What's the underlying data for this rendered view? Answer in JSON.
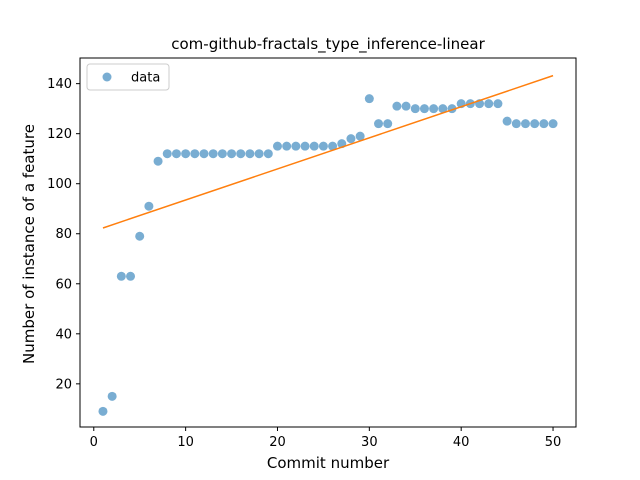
{
  "chart_data": {
    "type": "scatter",
    "title": "com-github-fractals_type_inference-linear",
    "xlabel": "Commit number",
    "ylabel": "Number of instance of a feature",
    "xlim": [
      -1.5,
      52.5
    ],
    "ylim": [
      2.75,
      150.25
    ],
    "xticks": [
      0,
      10,
      20,
      30,
      40,
      50
    ],
    "yticks": [
      20,
      40,
      60,
      80,
      100,
      120,
      140
    ],
    "legend": {
      "position": "top-left",
      "entries": [
        "data"
      ]
    },
    "colors": {
      "data": "#1f77b4",
      "fit": "#ff7f0e"
    },
    "series": [
      {
        "name": "data",
        "kind": "scatter",
        "x": [
          1,
          2,
          3,
          4,
          5,
          6,
          7,
          8,
          9,
          10,
          11,
          12,
          13,
          14,
          15,
          16,
          17,
          18,
          19,
          20,
          21,
          22,
          23,
          24,
          25,
          26,
          27,
          28,
          29,
          30,
          31,
          32,
          33,
          34,
          35,
          36,
          37,
          38,
          39,
          40,
          41,
          42,
          43,
          44,
          45,
          46,
          47,
          48,
          49,
          50
        ],
        "y": [
          9,
          15,
          63,
          63,
          79,
          91,
          109,
          112,
          112,
          112,
          112,
          112,
          112,
          112,
          112,
          112,
          112,
          112,
          112,
          115,
          115,
          115,
          115,
          115,
          115,
          115,
          116,
          118,
          119,
          134,
          124,
          124,
          131,
          131,
          130,
          130,
          130,
          130,
          130,
          132,
          132,
          132,
          132,
          132,
          125,
          124,
          124,
          124,
          124,
          124
        ]
      },
      {
        "kind": "line",
        "x": [
          1,
          50
        ],
        "y": [
          82.3,
          143.2
        ]
      }
    ]
  }
}
